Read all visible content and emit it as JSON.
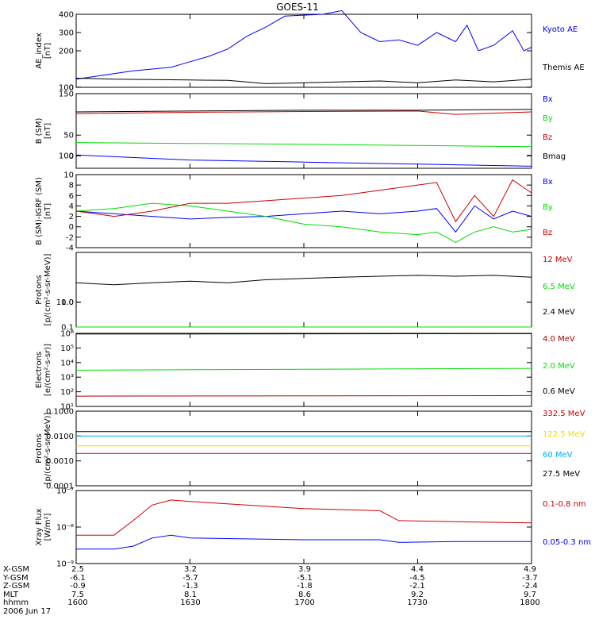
{
  "title": "GOES-11",
  "date_label": "2006 Jun 17",
  "footer": {
    "row_labels": [
      "X-GSM",
      "Y-GSM",
      "Z-GSM",
      "MLT",
      "hhmm"
    ],
    "columns": [
      {
        "values": [
          "2.5",
          "-6.1",
          "-0.9",
          "7.5",
          "1600"
        ]
      },
      {
        "values": [
          "3.2",
          "-5.7",
          "-1.3",
          "8.1",
          "1630"
        ]
      },
      {
        "values": [
          "3.9",
          "-5.1",
          "-1.8",
          "8.6",
          "1700"
        ]
      },
      {
        "values": [
          "4.4",
          "-4.5",
          "-2.1",
          "9.2",
          "1730"
        ]
      },
      {
        "values": [
          "4.9",
          "-3.7",
          "-2.4",
          "9.7",
          "1800"
        ]
      }
    ]
  },
  "colors": {
    "blue": "#0000ff",
    "black": "#000000",
    "green": "#00dd00",
    "red": "#cc0000",
    "yellow": "#eedd00",
    "cyan": "#00aaff",
    "darkred": "#aa0000"
  },
  "chart_data": [
    {
      "type": "line",
      "ylabel": "AE_index\n[nT]",
      "ylim": [
        0,
        400
      ],
      "yticks": [
        "0",
        "100",
        "200",
        "300",
        "400"
      ],
      "x_range_minutes": [
        0,
        120
      ],
      "series": [
        {
          "name": "Kyoto AE",
          "color": "blue",
          "x": [
            0,
            5,
            10,
            15,
            20,
            25,
            30,
            35,
            40,
            45,
            50,
            55,
            60,
            65,
            70,
            75,
            80,
            85,
            90,
            95,
            100,
            103,
            106,
            110,
            115,
            118,
            120
          ],
          "y": [
            45,
            60,
            75,
            90,
            100,
            110,
            140,
            170,
            210,
            280,
            330,
            390,
            395,
            400,
            420,
            300,
            250,
            260,
            230,
            300,
            250,
            340,
            200,
            230,
            310,
            200,
            220
          ]
        },
        {
          "name": "Themis AE",
          "color": "black",
          "x": [
            0,
            10,
            20,
            30,
            40,
            50,
            60,
            70,
            80,
            90,
            100,
            110,
            120
          ],
          "y": [
            50,
            45,
            42,
            40,
            38,
            20,
            25,
            30,
            35,
            25,
            40,
            30,
            45
          ]
        }
      ]
    },
    {
      "type": "line",
      "ylabel": "B (SM)\n[nT]",
      "ylim": [
        -30,
        150
      ],
      "yticks": [
        "0",
        "50",
        "100",
        "150"
      ],
      "x_range_minutes": [
        0,
        120
      ],
      "series": [
        {
          "name": "Bx",
          "color": "blue",
          "x": [
            0,
            30,
            60,
            90,
            120
          ],
          "y": [
            2,
            -10,
            -15,
            -20,
            -25
          ]
        },
        {
          "name": "By",
          "color": "green",
          "x": [
            0,
            30,
            60,
            90,
            120
          ],
          "y": [
            32,
            30,
            28,
            25,
            22
          ]
        },
        {
          "name": "Bz",
          "color": "red",
          "x": [
            0,
            30,
            60,
            90,
            100,
            120
          ],
          "y": [
            102,
            105,
            107,
            108,
            100,
            106
          ]
        },
        {
          "name": "Bmag",
          "color": "black",
          "x": [
            0,
            30,
            60,
            90,
            120
          ],
          "y": [
            106,
            108,
            110,
            110,
            112
          ]
        }
      ]
    },
    {
      "type": "line",
      "ylabel": "B (SM)-IGRF (SM)\n[nT]",
      "ylim": [
        -4,
        10
      ],
      "yticks": [
        "-4",
        "-2",
        "0",
        "2",
        "4",
        "6",
        "8",
        "10"
      ],
      "x_range_minutes": [
        0,
        120
      ],
      "series": [
        {
          "name": "Bx",
          "color": "blue",
          "x": [
            0,
            10,
            20,
            30,
            40,
            50,
            60,
            70,
            80,
            90,
            95,
            100,
            105,
            110,
            115,
            120
          ],
          "y": [
            3,
            2.5,
            2,
            1.5,
            1.8,
            2,
            2.5,
            3,
            2.5,
            3,
            3.5,
            -1,
            4,
            1.5,
            3,
            2
          ]
        },
        {
          "name": "By",
          "color": "green",
          "x": [
            0,
            10,
            20,
            30,
            40,
            50,
            60,
            70,
            80,
            90,
            95,
            100,
            105,
            110,
            115,
            120
          ],
          "y": [
            3,
            3.5,
            4.5,
            4,
            3,
            2,
            0.5,
            0,
            -1,
            -1.5,
            -1,
            -3,
            -1,
            0,
            -1,
            -0.5
          ]
        },
        {
          "name": "Bz",
          "color": "red",
          "x": [
            0,
            10,
            20,
            30,
            40,
            50,
            60,
            70,
            80,
            90,
            95,
            100,
            105,
            110,
            115,
            120
          ],
          "y": [
            3,
            2,
            3,
            4.5,
            4.5,
            5,
            5.5,
            6,
            7,
            8,
            8.5,
            1,
            6,
            2,
            9,
            6.5
          ]
        }
      ]
    },
    {
      "type": "line",
      "ylabel": "Protons\n[p/(cm²-s-sr-MeV)]",
      "scale": "log",
      "ylim": [
        0.1,
        100
      ],
      "yticks": [
        "0.1",
        "1.0",
        "10.0"
      ],
      "x_range_minutes": [
        0,
        120
      ],
      "series": [
        {
          "name": "12 MeV",
          "color": "red",
          "x": [
            0,
            120
          ],
          "y": [
            0.1,
            0.1
          ]
        },
        {
          "name": "6.5 MeV",
          "color": "green",
          "x": [
            0,
            120
          ],
          "y": [
            0.1,
            0.1
          ]
        },
        {
          "name": "2.4 MeV",
          "color": "black",
          "x": [
            0,
            10,
            20,
            30,
            40,
            50,
            60,
            70,
            80,
            90,
            100,
            110,
            120
          ],
          "y": [
            6,
            5,
            6,
            7,
            6,
            8,
            9,
            10,
            11,
            12,
            11,
            12,
            10
          ]
        }
      ]
    },
    {
      "type": "line",
      "ylabel": "Electrons\n[e/(cm²-s-sr)]",
      "scale": "log",
      "ylim": [
        10,
        1000000
      ],
      "yticks": [
        "10¹",
        "10²",
        "10³",
        "10⁴",
        "10⁵",
        "10⁶"
      ],
      "x_range_minutes": [
        0,
        120
      ],
      "series": [
        {
          "name": "4.0 MeV",
          "color": "darkred",
          "x": [
            0,
            120
          ],
          "y": [
            50,
            55
          ]
        },
        {
          "name": "2.0 MeV",
          "color": "green",
          "x": [
            0,
            120
          ],
          "y": [
            3000,
            4000
          ]
        },
        {
          "name": "0.6 MeV",
          "color": "black",
          "x": [
            0,
            120
          ],
          "y": [
            900000,
            950000
          ]
        }
      ]
    },
    {
      "type": "line",
      "ylabel": "Protons\n[p/(cm²-s-sr-MeV)]",
      "scale": "log",
      "ylim": [
        0.0001,
        0.1
      ],
      "yticks": [
        "0.0001",
        "0.0010",
        "0.0100",
        "0.1000"
      ],
      "x_range_minutes": [
        0,
        120
      ],
      "series": [
        {
          "name": "332.5 MeV",
          "color": "red",
          "x": [
            0,
            120
          ],
          "y": [
            0.002,
            0.002
          ]
        },
        {
          "name": "122.5 MeV",
          "color": "yellow",
          "x": [
            0,
            120
          ],
          "y": [
            0.004,
            0.004
          ]
        },
        {
          "name": "60 MeV",
          "color": "cyan",
          "x": [
            0,
            120
          ],
          "y": [
            0.01,
            0.01
          ]
        },
        {
          "name": "27.5 MeV",
          "color": "black",
          "x": [
            0,
            120
          ],
          "y": [
            0.015,
            0.015
          ]
        }
      ]
    },
    {
      "type": "line",
      "ylabel": "Xray Flux\n[W/m²]",
      "scale": "log",
      "ylim": [
        1e-09,
        1e-07
      ],
      "yticks": [
        "10⁻⁹",
        "10⁻⁸",
        "10⁻⁷"
      ],
      "x_range_minutes": [
        0,
        120
      ],
      "series": [
        {
          "name": "0.1-0.8 nm",
          "color": "red",
          "x": [
            0,
            10,
            15,
            20,
            25,
            30,
            60,
            80,
            85,
            100,
            120
          ],
          "y": [
            6e-09,
            6e-09,
            1.5e-08,
            4e-08,
            5.5e-08,
            5e-08,
            3.2e-08,
            2.8e-08,
            1.5e-08,
            1.4e-08,
            1.3e-08
          ]
        },
        {
          "name": "0.05-0.3 nm",
          "color": "blue",
          "x": [
            0,
            10,
            15,
            20,
            25,
            30,
            60,
            80,
            85,
            100,
            120
          ],
          "y": [
            2.5e-09,
            2.5e-09,
            3e-09,
            5e-09,
            6e-09,
            5e-09,
            4.5e-09,
            4.5e-09,
            3.8e-09,
            4e-09,
            4e-09
          ]
        }
      ]
    }
  ]
}
